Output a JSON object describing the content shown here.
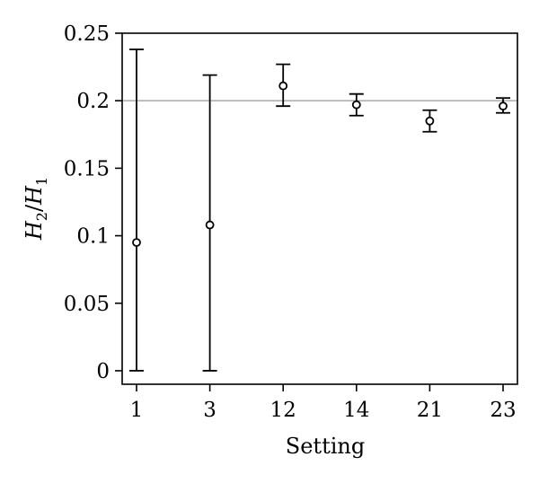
{
  "chart_data": {
    "type": "scatter",
    "title": "",
    "xlabel": "Setting",
    "ylabel": {
      "var1": "H",
      "sub1": "2",
      "sep": "/",
      "var2": "H",
      "sub2": "1"
    },
    "categories": [
      "1",
      "3",
      "12",
      "14",
      "21",
      "23"
    ],
    "values": [
      0.095,
      0.108,
      0.211,
      0.197,
      0.185,
      0.196
    ],
    "error_low": [
      0.0,
      0.0,
      0.196,
      0.189,
      0.177,
      0.191
    ],
    "error_high": [
      0.238,
      0.219,
      0.227,
      0.205,
      0.193,
      0.202
    ],
    "reference_line": 0.2,
    "ylim": [
      -0.01,
      0.25
    ],
    "yticks": [
      0,
      0.05,
      0.1,
      0.15,
      0.2,
      0.25
    ],
    "ytick_labels": [
      "0",
      "0.05",
      "0.1",
      "0.15",
      "0.2",
      "0.25"
    ],
    "grid": false,
    "legend": "none",
    "colors": {
      "marks": "#000000",
      "reference_line": "#b0b0b0"
    }
  }
}
